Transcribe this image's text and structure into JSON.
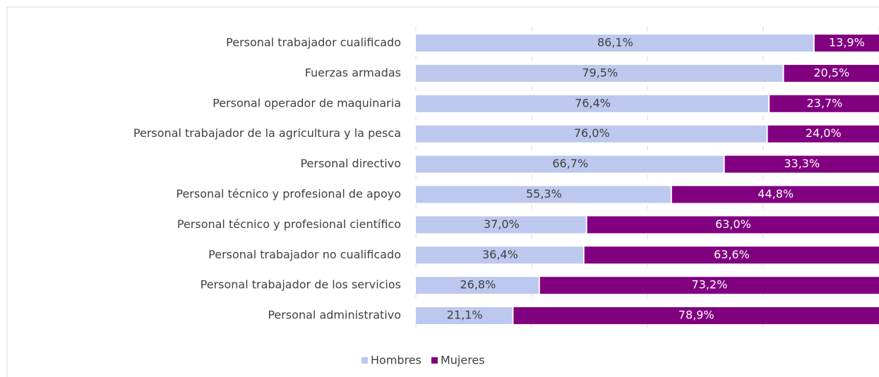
{
  "chart_data": {
    "type": "stacked_bar_horizontal",
    "categories": [
      "Personal trabajador cualificado",
      "Fuerzas armadas",
      "Personal operador de maquinaria",
      "Personal trabajador de la agricultura y la pesca",
      "Personal directivo",
      "Personal técnico y profesional de apoyo",
      "Personal técnico y profesional científico",
      "Personal trabajador no cualificado",
      "Personal trabajador de los servicios",
      "Personal administrativo"
    ],
    "series": [
      {
        "name": "Hombres",
        "color": "#bcc8ee",
        "values": [
          86.1,
          79.5,
          76.4,
          76.0,
          66.7,
          55.3,
          37.0,
          36.4,
          26.8,
          21.1
        ],
        "value_labels": [
          "86,1%",
          "79,5%",
          "76,4%",
          "76,0%",
          "66,7%",
          "55,3%",
          "37,0%",
          "36,4%",
          "26,8%",
          "21,1%"
        ]
      },
      {
        "name": "Mujeres",
        "color": "#800080",
        "values": [
          13.9,
          20.5,
          23.7,
          24.0,
          33.3,
          44.8,
          63.0,
          63.6,
          73.2,
          78.9
        ],
        "value_labels": [
          "13,9%",
          "20,5%",
          "23,7%",
          "24,0%",
          "33,3%",
          "44,8%",
          "63,0%",
          "63,6%",
          "73,2%",
          "78,9%"
        ]
      }
    ],
    "xlim": [
      0,
      100
    ],
    "xticks": [
      0,
      25,
      50,
      75,
      100
    ],
    "grid": true,
    "legend": "bottom"
  }
}
